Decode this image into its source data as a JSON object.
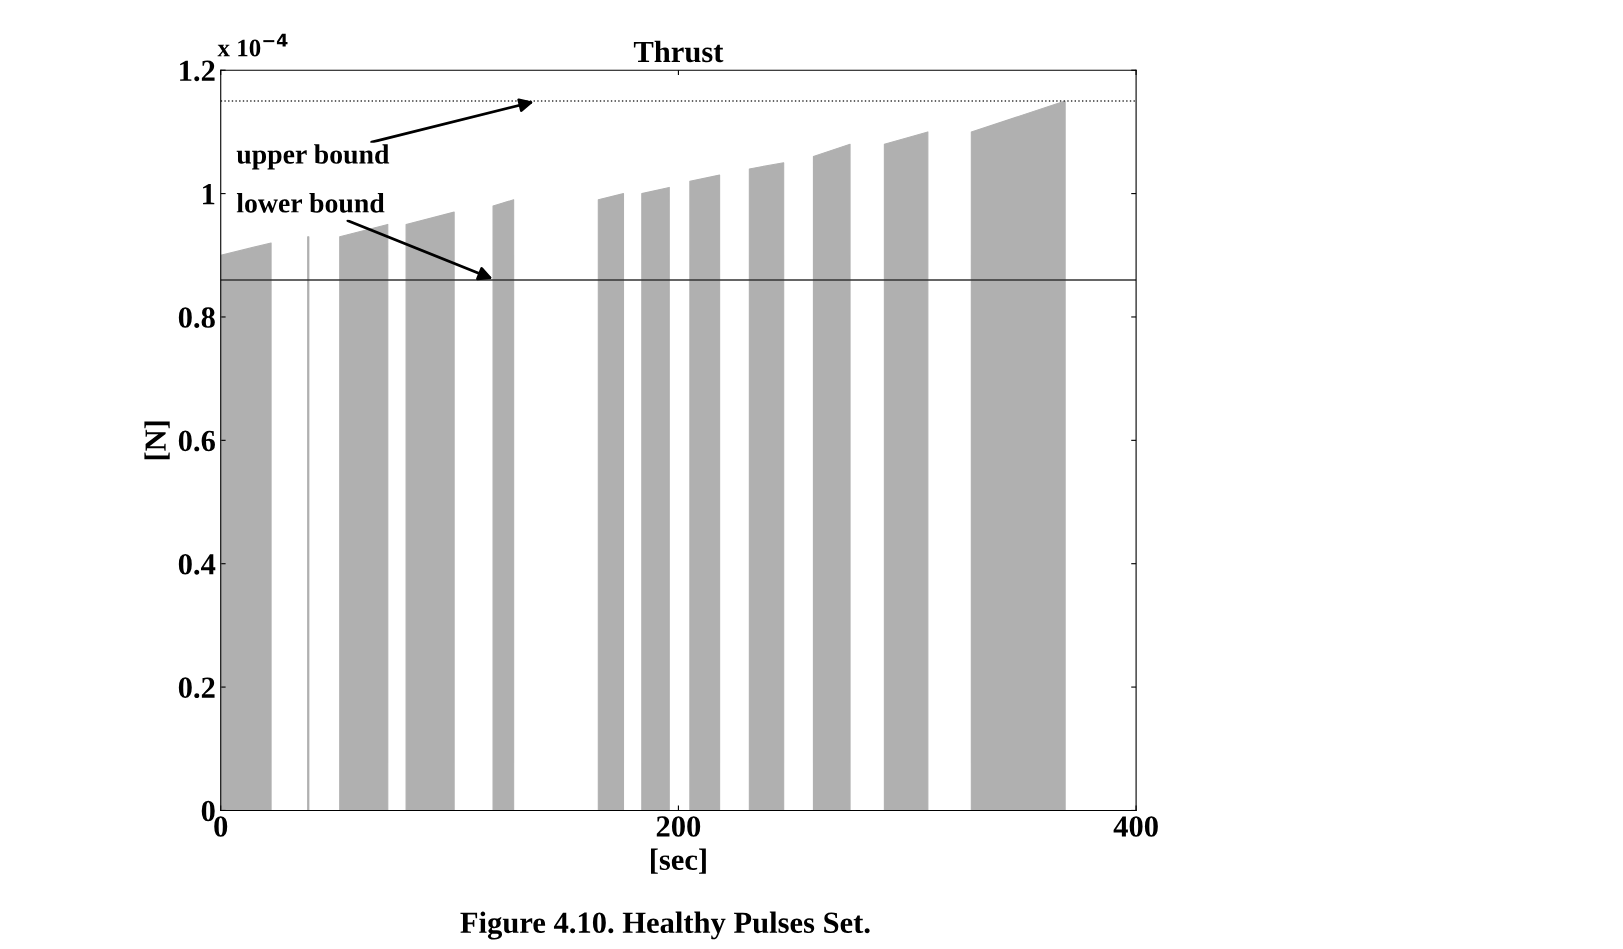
{
  "chart_data": {
    "type": "area",
    "title": "Thrust",
    "xlabel": "[sec]",
    "ylabel": "[N]",
    "x": [
      0,
      0,
      22,
      22,
      38,
      38,
      38.5,
      38.5,
      52,
      52,
      73,
      73,
      81,
      81,
      102,
      102,
      119,
      119,
      128,
      128,
      165,
      165,
      176,
      176,
      184,
      184,
      196,
      196,
      205,
      205,
      218,
      218,
      231,
      231,
      246,
      246,
      259,
      259,
      275,
      275,
      290,
      290,
      309,
      309,
      328,
      328,
      369,
      369
    ],
    "series": [
      {
        "color": "#b0b0b0",
        "values": [
          0,
          0.9,
          0.92,
          0,
          0,
          0.93,
          0.93,
          0,
          0,
          0.93,
          0.95,
          0,
          0,
          0.95,
          0.97,
          0,
          0,
          0.98,
          0.99,
          0,
          0,
          0.99,
          1.0,
          0,
          0,
          1.0,
          1.01,
          0,
          0,
          1.02,
          1.03,
          0,
          0,
          1.04,
          1.05,
          0,
          0,
          1.06,
          1.08,
          0,
          0,
          1.08,
          1.1,
          0,
          0,
          1.1,
          1.15,
          0
        ]
      }
    ],
    "xlim": [
      0,
      400
    ],
    "xticks": [
      0,
      200,
      400
    ],
    "ylim": [
      0,
      1.2
    ],
    "yticks": [
      0,
      0.2,
      0.4,
      0.6,
      0.8,
      1,
      1.2
    ],
    "ref_lines": [
      {
        "axis": "y",
        "value": 1.15,
        "line_style": "dotted",
        "color": "#333333",
        "label": "upper bound"
      },
      {
        "axis": "y",
        "value": 0.86,
        "line_style": "solid",
        "color": "#333333",
        "label": "lower bound"
      }
    ],
    "annotations": [
      "x 10$^{−4}$",
      "Figure 4.10. Healthy Pulses Set."
    ],
    "grid": false
  }
}
